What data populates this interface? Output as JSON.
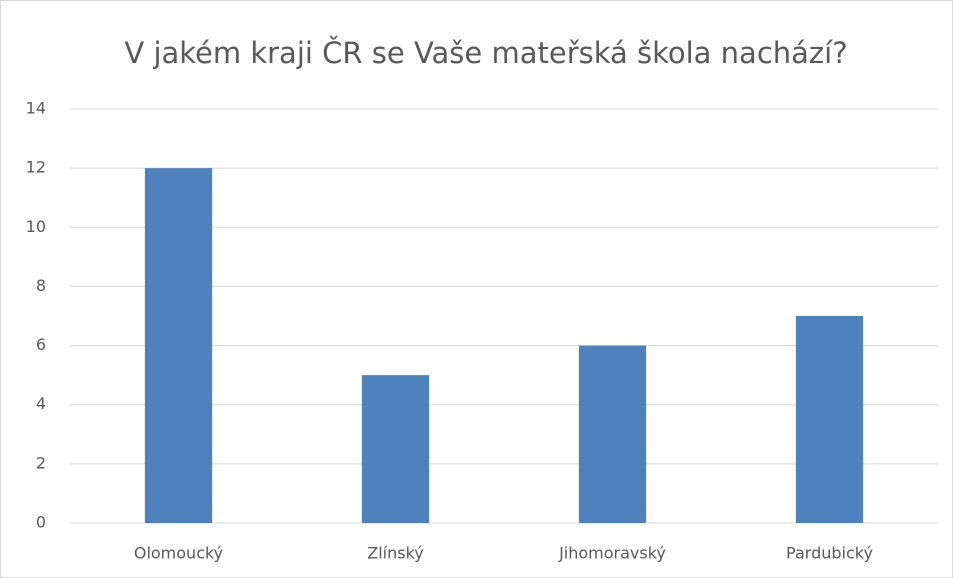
{
  "chart_data": {
    "type": "bar",
    "title": "V jakém kraji ČR se Vaše mateřská škola nachází?",
    "categories": [
      "Olomoucký",
      "Zlínský",
      "Jihomoravský",
      "Pardubický"
    ],
    "values": [
      12,
      5,
      6,
      7
    ],
    "color": "#4f81bd",
    "ylim": [
      0,
      14
    ],
    "yticks": [
      0,
      2,
      4,
      6,
      8,
      10,
      12,
      14
    ],
    "grid": true
  }
}
